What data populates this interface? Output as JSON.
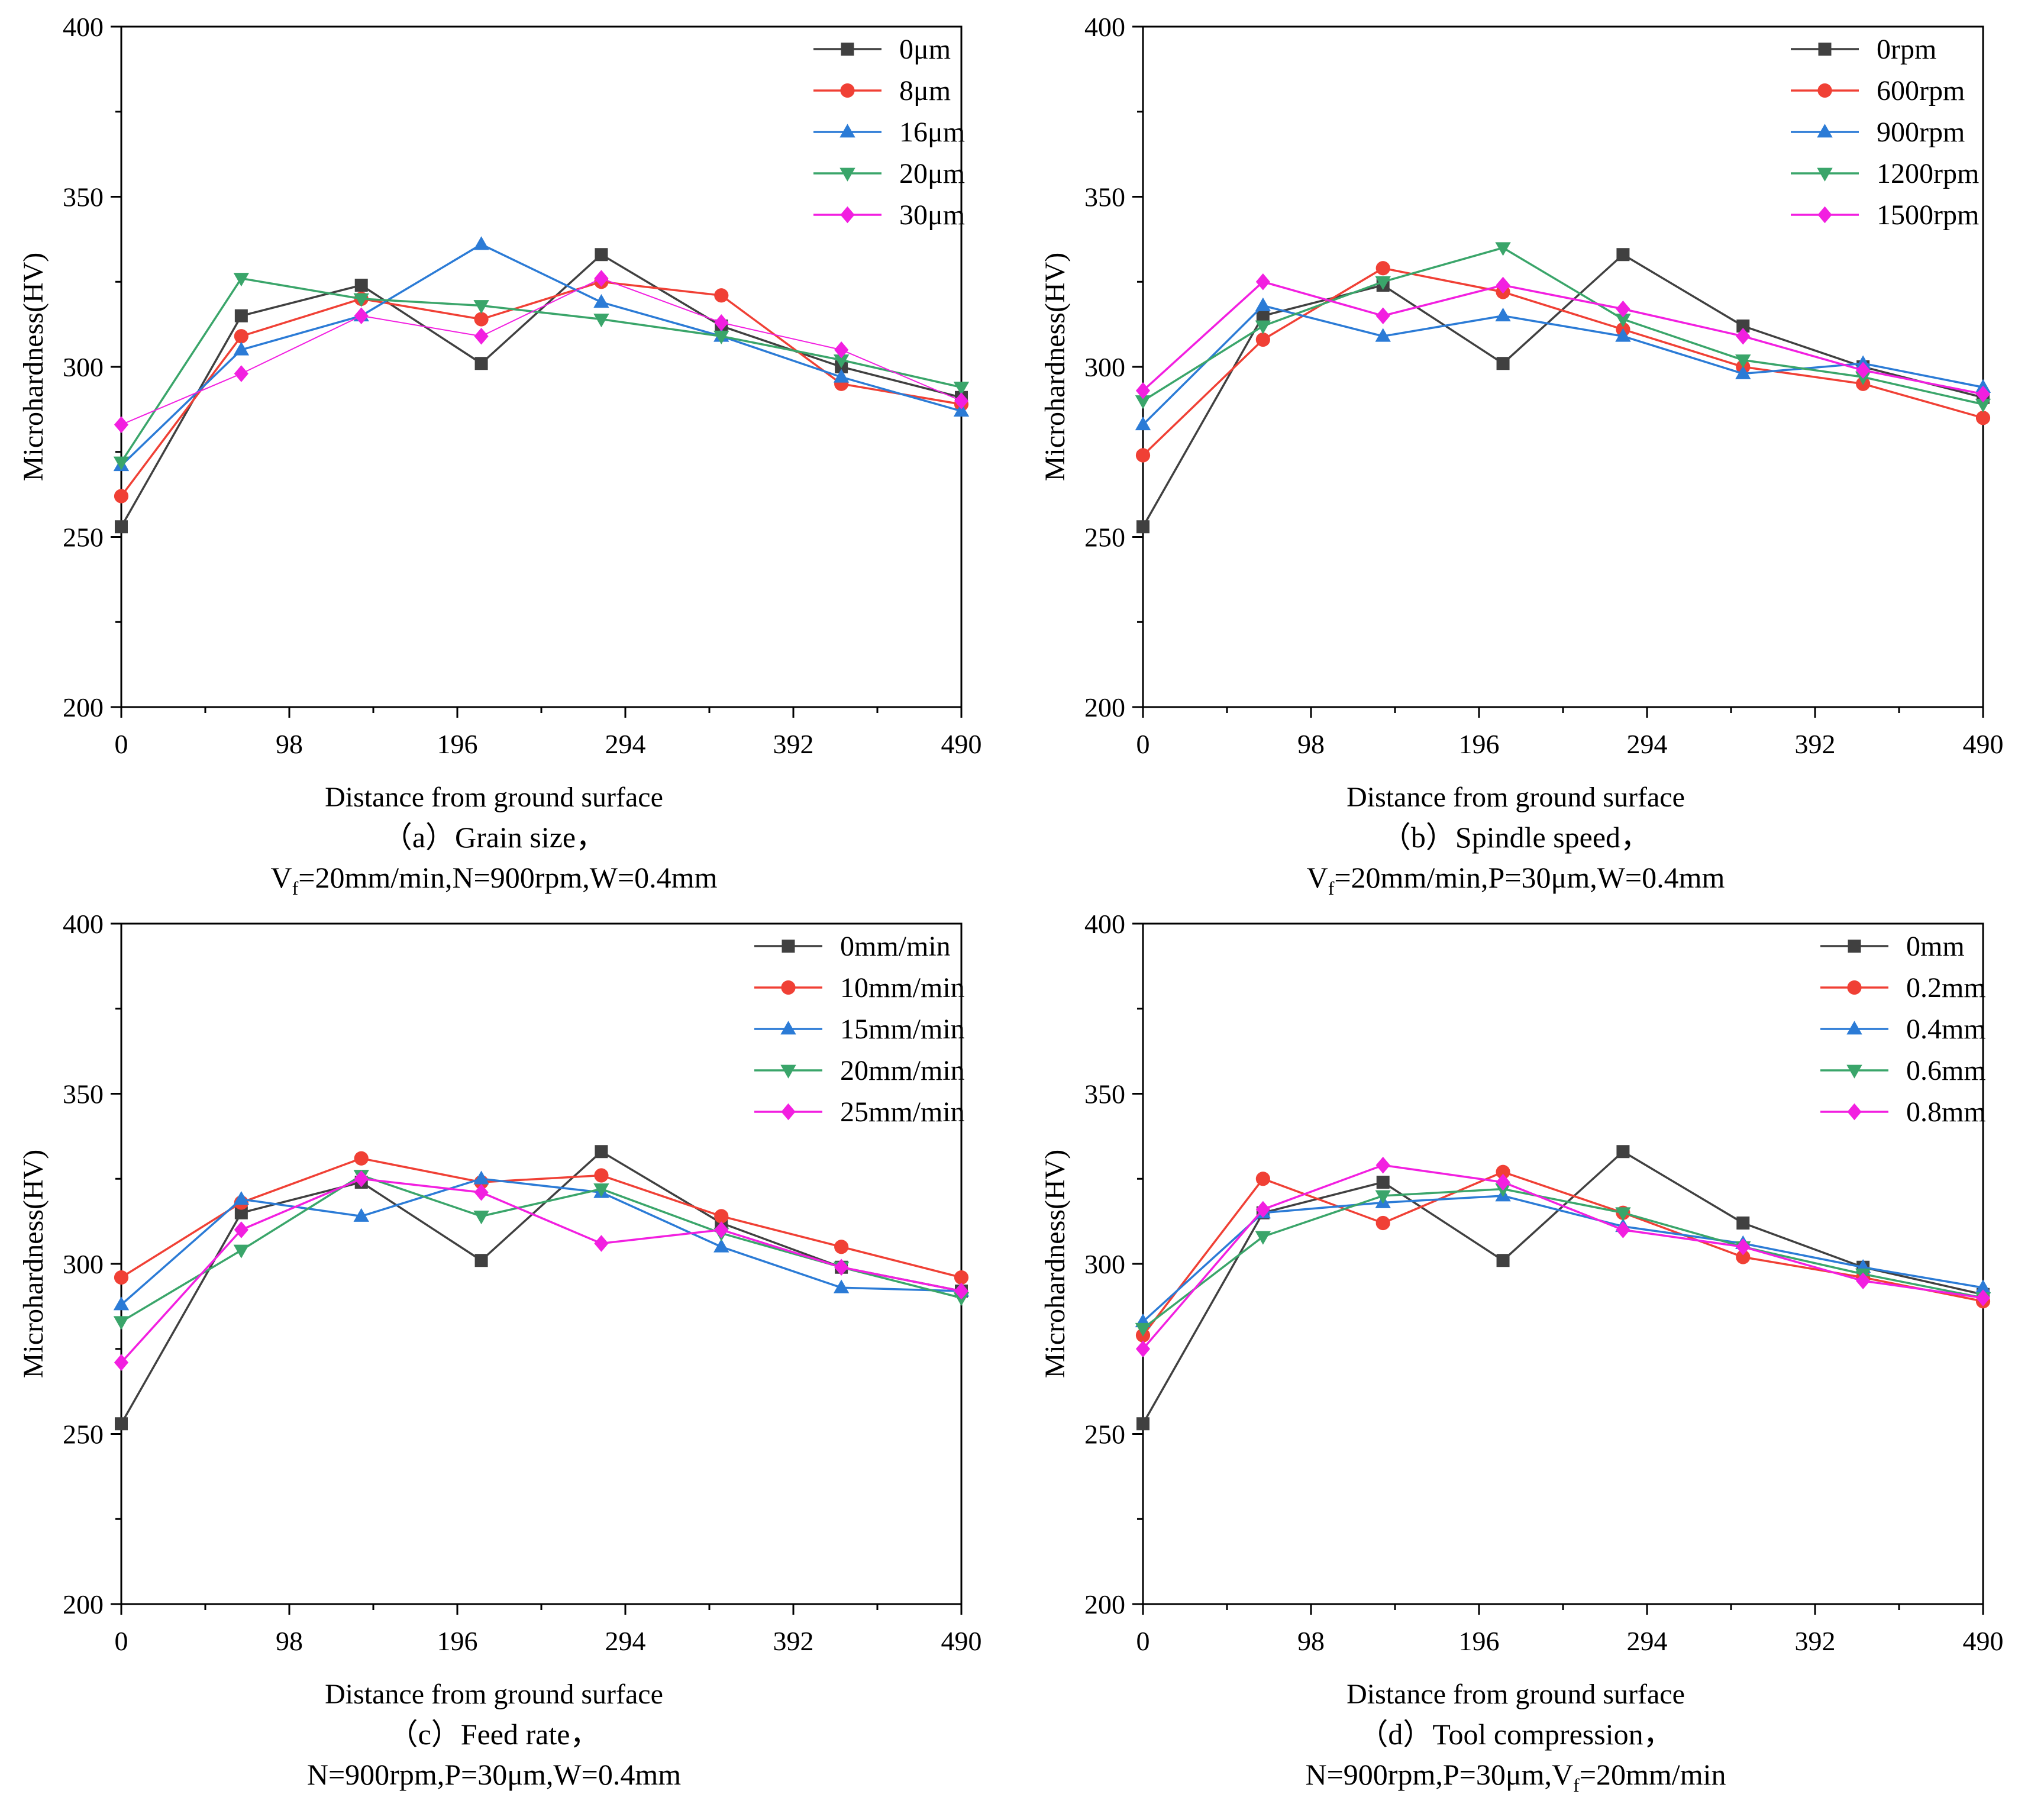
{
  "colors": {
    "black": "#404040",
    "red": "#f04035",
    "blue": "#2b7bd6",
    "green": "#3aa56a",
    "magenta": "#f21fe0"
  },
  "chart_data": [
    {
      "type": "line",
      "panel": "a",
      "xlabel": "Distance from ground surface",
      "ylabel": "Microhardness(HV)",
      "caption_line1": "（a）Grain size，",
      "caption_line2_parts": [
        "V",
        "f",
        "=20mm/min,N=900rpm,W=0.4mm"
      ],
      "xlim": [
        0,
        490
      ],
      "ylim": [
        200,
        400
      ],
      "xticks": [
        0,
        98,
        196,
        294,
        392,
        490
      ],
      "yticks": [
        200,
        250,
        300,
        350,
        400
      ],
      "legend_position": "top-right",
      "series": [
        {
          "name": "0μm",
          "marker": "square",
          "color": "#404040",
          "x": [
            0,
            70,
            140,
            210,
            280,
            350,
            420,
            490
          ],
          "y": [
            253,
            315,
            324,
            301,
            333,
            312,
            300,
            291
          ]
        },
        {
          "name": "8μm",
          "marker": "circle",
          "color": "#f04035",
          "x": [
            0,
            70,
            140,
            210,
            280,
            350,
            420,
            490
          ],
          "y": [
            262,
            309,
            320,
            314,
            325,
            321,
            295,
            289
          ]
        },
        {
          "name": "16μm",
          "marker": "triangle-up",
          "color": "#2b7bd6",
          "x": [
            0,
            70,
            140,
            210,
            280,
            350,
            420,
            490
          ],
          "y": [
            271,
            305,
            315,
            336,
            319,
            309,
            297,
            287
          ]
        },
        {
          "name": "20μm",
          "marker": "triangle-down",
          "color": "#3aa56a",
          "x": [
            0,
            70,
            140,
            210,
            280,
            350,
            420,
            490
          ],
          "y": [
            272,
            326,
            320,
            318,
            314,
            309,
            302,
            294
          ]
        },
        {
          "name": "30μm",
          "marker": "diamond",
          "color": "#f21fe0",
          "x": [
            0,
            70,
            140,
            210,
            280,
            350,
            420,
            490
          ],
          "y": [
            283,
            298,
            315,
            309,
            326,
            313,
            305,
            290
          ]
        }
      ]
    },
    {
      "type": "line",
      "panel": "b",
      "xlabel": "Distance from ground surface",
      "ylabel": "Microhardness(HV)",
      "caption_line1": "（b）Spindle speed，",
      "caption_line2_parts": [
        "V",
        "f",
        "=20mm/min,P=30μm,W=0.4mm"
      ],
      "xlim": [
        0,
        490
      ],
      "ylim": [
        200,
        400
      ],
      "xticks": [
        0,
        98,
        196,
        294,
        392,
        490
      ],
      "yticks": [
        200,
        250,
        300,
        350,
        400
      ],
      "legend_position": "top-right",
      "series": [
        {
          "name": "0rpm",
          "marker": "square",
          "color": "#404040",
          "x": [
            0,
            70,
            140,
            210,
            280,
            350,
            420,
            490
          ],
          "y": [
            253,
            315,
            324,
            301,
            333,
            312,
            300,
            291
          ]
        },
        {
          "name": "600rpm",
          "marker": "circle",
          "color": "#f04035",
          "x": [
            0,
            70,
            140,
            210,
            280,
            350,
            420,
            490
          ],
          "y": [
            274,
            308,
            329,
            322,
            311,
            300,
            295,
            285
          ]
        },
        {
          "name": "900rpm",
          "marker": "triangle-up",
          "color": "#2b7bd6",
          "x": [
            0,
            70,
            140,
            210,
            280,
            350,
            420,
            490
          ],
          "y": [
            283,
            318,
            309,
            315,
            309,
            298,
            301,
            294
          ]
        },
        {
          "name": "1200rpm",
          "marker": "triangle-down",
          "color": "#3aa56a",
          "x": [
            0,
            70,
            140,
            210,
            280,
            350,
            420,
            490
          ],
          "y": [
            290,
            312,
            325,
            335,
            314,
            302,
            297,
            289
          ]
        },
        {
          "name": "1500rpm",
          "marker": "diamond",
          "color": "#f21fe0",
          "x": [
            0,
            70,
            140,
            210,
            280,
            350,
            420,
            490
          ],
          "y": [
            293,
            325,
            315,
            324,
            317,
            309,
            299,
            292
          ]
        }
      ]
    },
    {
      "type": "line",
      "panel": "c",
      "xlabel": "Distance from ground surface",
      "ylabel": "Microhardness(HV)",
      "caption_line1": "（c）Feed rate，",
      "caption_line2_parts": [
        "N=900rpm,P=30μm,W=0.4mm"
      ],
      "xlim": [
        0,
        490
      ],
      "ylim": [
        200,
        400
      ],
      "xticks": [
        0,
        98,
        196,
        294,
        392,
        490
      ],
      "yticks": [
        200,
        250,
        300,
        350,
        400
      ],
      "legend_position": "top-right",
      "series": [
        {
          "name": "0mm/min",
          "marker": "square",
          "color": "#404040",
          "x": [
            0,
            70,
            140,
            210,
            280,
            350,
            420,
            490
          ],
          "y": [
            253,
            315,
            324,
            301,
            333,
            312,
            299,
            292
          ]
        },
        {
          "name": "10mm/min",
          "marker": "circle",
          "color": "#f04035",
          "x": [
            0,
            70,
            140,
            210,
            280,
            350,
            420,
            490
          ],
          "y": [
            296,
            318,
            331,
            324,
            326,
            314,
            305,
            296
          ]
        },
        {
          "name": "15mm/min",
          "marker": "triangle-up",
          "color": "#2b7bd6",
          "x": [
            0,
            70,
            140,
            210,
            280,
            350,
            420,
            490
          ],
          "y": [
            288,
            319,
            314,
            325,
            321,
            305,
            293,
            292
          ]
        },
        {
          "name": "20mm/min",
          "marker": "triangle-down",
          "color": "#3aa56a",
          "x": [
            0,
            70,
            140,
            210,
            280,
            350,
            420,
            490
          ],
          "y": [
            283,
            304,
            326,
            314,
            322,
            309,
            299,
            290
          ]
        },
        {
          "name": "25mm/min",
          "marker": "diamond",
          "color": "#f21fe0",
          "x": [
            0,
            70,
            140,
            210,
            280,
            350,
            420,
            490
          ],
          "y": [
            271,
            310,
            325,
            321,
            306,
            310,
            299,
            292
          ]
        }
      ]
    },
    {
      "type": "line",
      "panel": "d",
      "xlabel": "Distance from ground surface",
      "ylabel": "Microhardness(HV)",
      "caption_line1": "（d）Tool compression，",
      "caption_line2_parts": [
        "N=900rpm,P=30μm,V",
        "f",
        "=20mm/min"
      ],
      "xlim": [
        0,
        490
      ],
      "ylim": [
        200,
        400
      ],
      "xticks": [
        0,
        98,
        196,
        294,
        392,
        490
      ],
      "yticks": [
        200,
        250,
        300,
        350,
        400
      ],
      "legend_position": "top-right",
      "series": [
        {
          "name": "0mm",
          "marker": "square",
          "color": "#404040",
          "x": [
            0,
            70,
            140,
            210,
            280,
            350,
            420,
            490
          ],
          "y": [
            253,
            315,
            324,
            301,
            333,
            312,
            299,
            291
          ]
        },
        {
          "name": "0.2mm",
          "marker": "circle",
          "color": "#f04035",
          "x": [
            0,
            70,
            140,
            210,
            280,
            350,
            420,
            490
          ],
          "y": [
            279,
            325,
            312,
            327,
            315,
            302,
            296,
            289
          ]
        },
        {
          "name": "0.4mm",
          "marker": "triangle-up",
          "color": "#2b7bd6",
          "x": [
            0,
            70,
            140,
            210,
            280,
            350,
            420,
            490
          ],
          "y": [
            283,
            315,
            318,
            320,
            311,
            306,
            299,
            293
          ]
        },
        {
          "name": "0.6mm",
          "marker": "triangle-down",
          "color": "#3aa56a",
          "x": [
            0,
            70,
            140,
            210,
            280,
            350,
            420,
            490
          ],
          "y": [
            281,
            308,
            320,
            322,
            315,
            305,
            297,
            290
          ]
        },
        {
          "name": "0.8mm",
          "marker": "diamond",
          "color": "#f21fe0",
          "x": [
            0,
            70,
            140,
            210,
            280,
            350,
            420,
            490
          ],
          "y": [
            275,
            316,
            329,
            324,
            310,
            305,
            295,
            290
          ]
        }
      ]
    }
  ]
}
